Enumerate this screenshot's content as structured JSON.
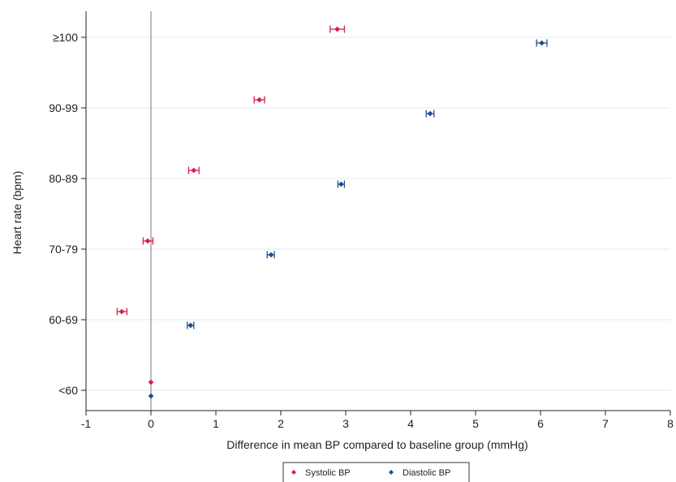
{
  "chart_data": {
    "type": "scatter",
    "xlabel": "Difference in mean BP compared to baseline group (mmHg)",
    "ylabel": "Heart rate (bpm)",
    "xlim": [
      -1,
      8
    ],
    "x_ticks": [
      "-1",
      "0",
      "1",
      "2",
      "3",
      "4",
      "5",
      "6",
      "7",
      "8"
    ],
    "categories": [
      "≥100",
      "90-99",
      "80-89",
      "70-79",
      "60-69",
      "<60"
    ],
    "grid": "horizontal",
    "reference_line_x": 0,
    "legend_position": "bottom",
    "colors": {
      "systolic": "#d6204a",
      "diastolic": "#1f4e8c",
      "grid": "#e6eef2",
      "axis": "#222222"
    },
    "series": [
      {
        "name": "Systolic BP",
        "marker": "diamond",
        "points": [
          {
            "category": "≥100",
            "x": 2.87,
            "lo": 2.76,
            "hi": 2.98
          },
          {
            "category": "90-99",
            "x": 1.67,
            "lo": 1.59,
            "hi": 1.75
          },
          {
            "category": "80-89",
            "x": 0.66,
            "lo": 0.58,
            "hi": 0.74
          },
          {
            "category": "70-79",
            "x": -0.05,
            "lo": -0.12,
            "hi": 0.03
          },
          {
            "category": "60-69",
            "x": -0.45,
            "lo": -0.52,
            "hi": -0.37
          },
          {
            "category": "<60",
            "x": 0.0,
            "lo": 0.0,
            "hi": 0.0
          }
        ]
      },
      {
        "name": "Diastolic BP",
        "marker": "diamond",
        "points": [
          {
            "category": "≥100",
            "x": 6.02,
            "lo": 5.94,
            "hi": 6.1
          },
          {
            "category": "90-99",
            "x": 4.3,
            "lo": 4.24,
            "hi": 4.36
          },
          {
            "category": "80-89",
            "x": 2.93,
            "lo": 2.88,
            "hi": 2.98
          },
          {
            "category": "70-79",
            "x": 1.85,
            "lo": 1.79,
            "hi": 1.9
          },
          {
            "category": "60-69",
            "x": 0.61,
            "lo": 0.56,
            "hi": 0.66
          },
          {
            "category": "<60",
            "x": 0.0,
            "lo": 0.0,
            "hi": 0.0
          }
        ]
      }
    ]
  }
}
